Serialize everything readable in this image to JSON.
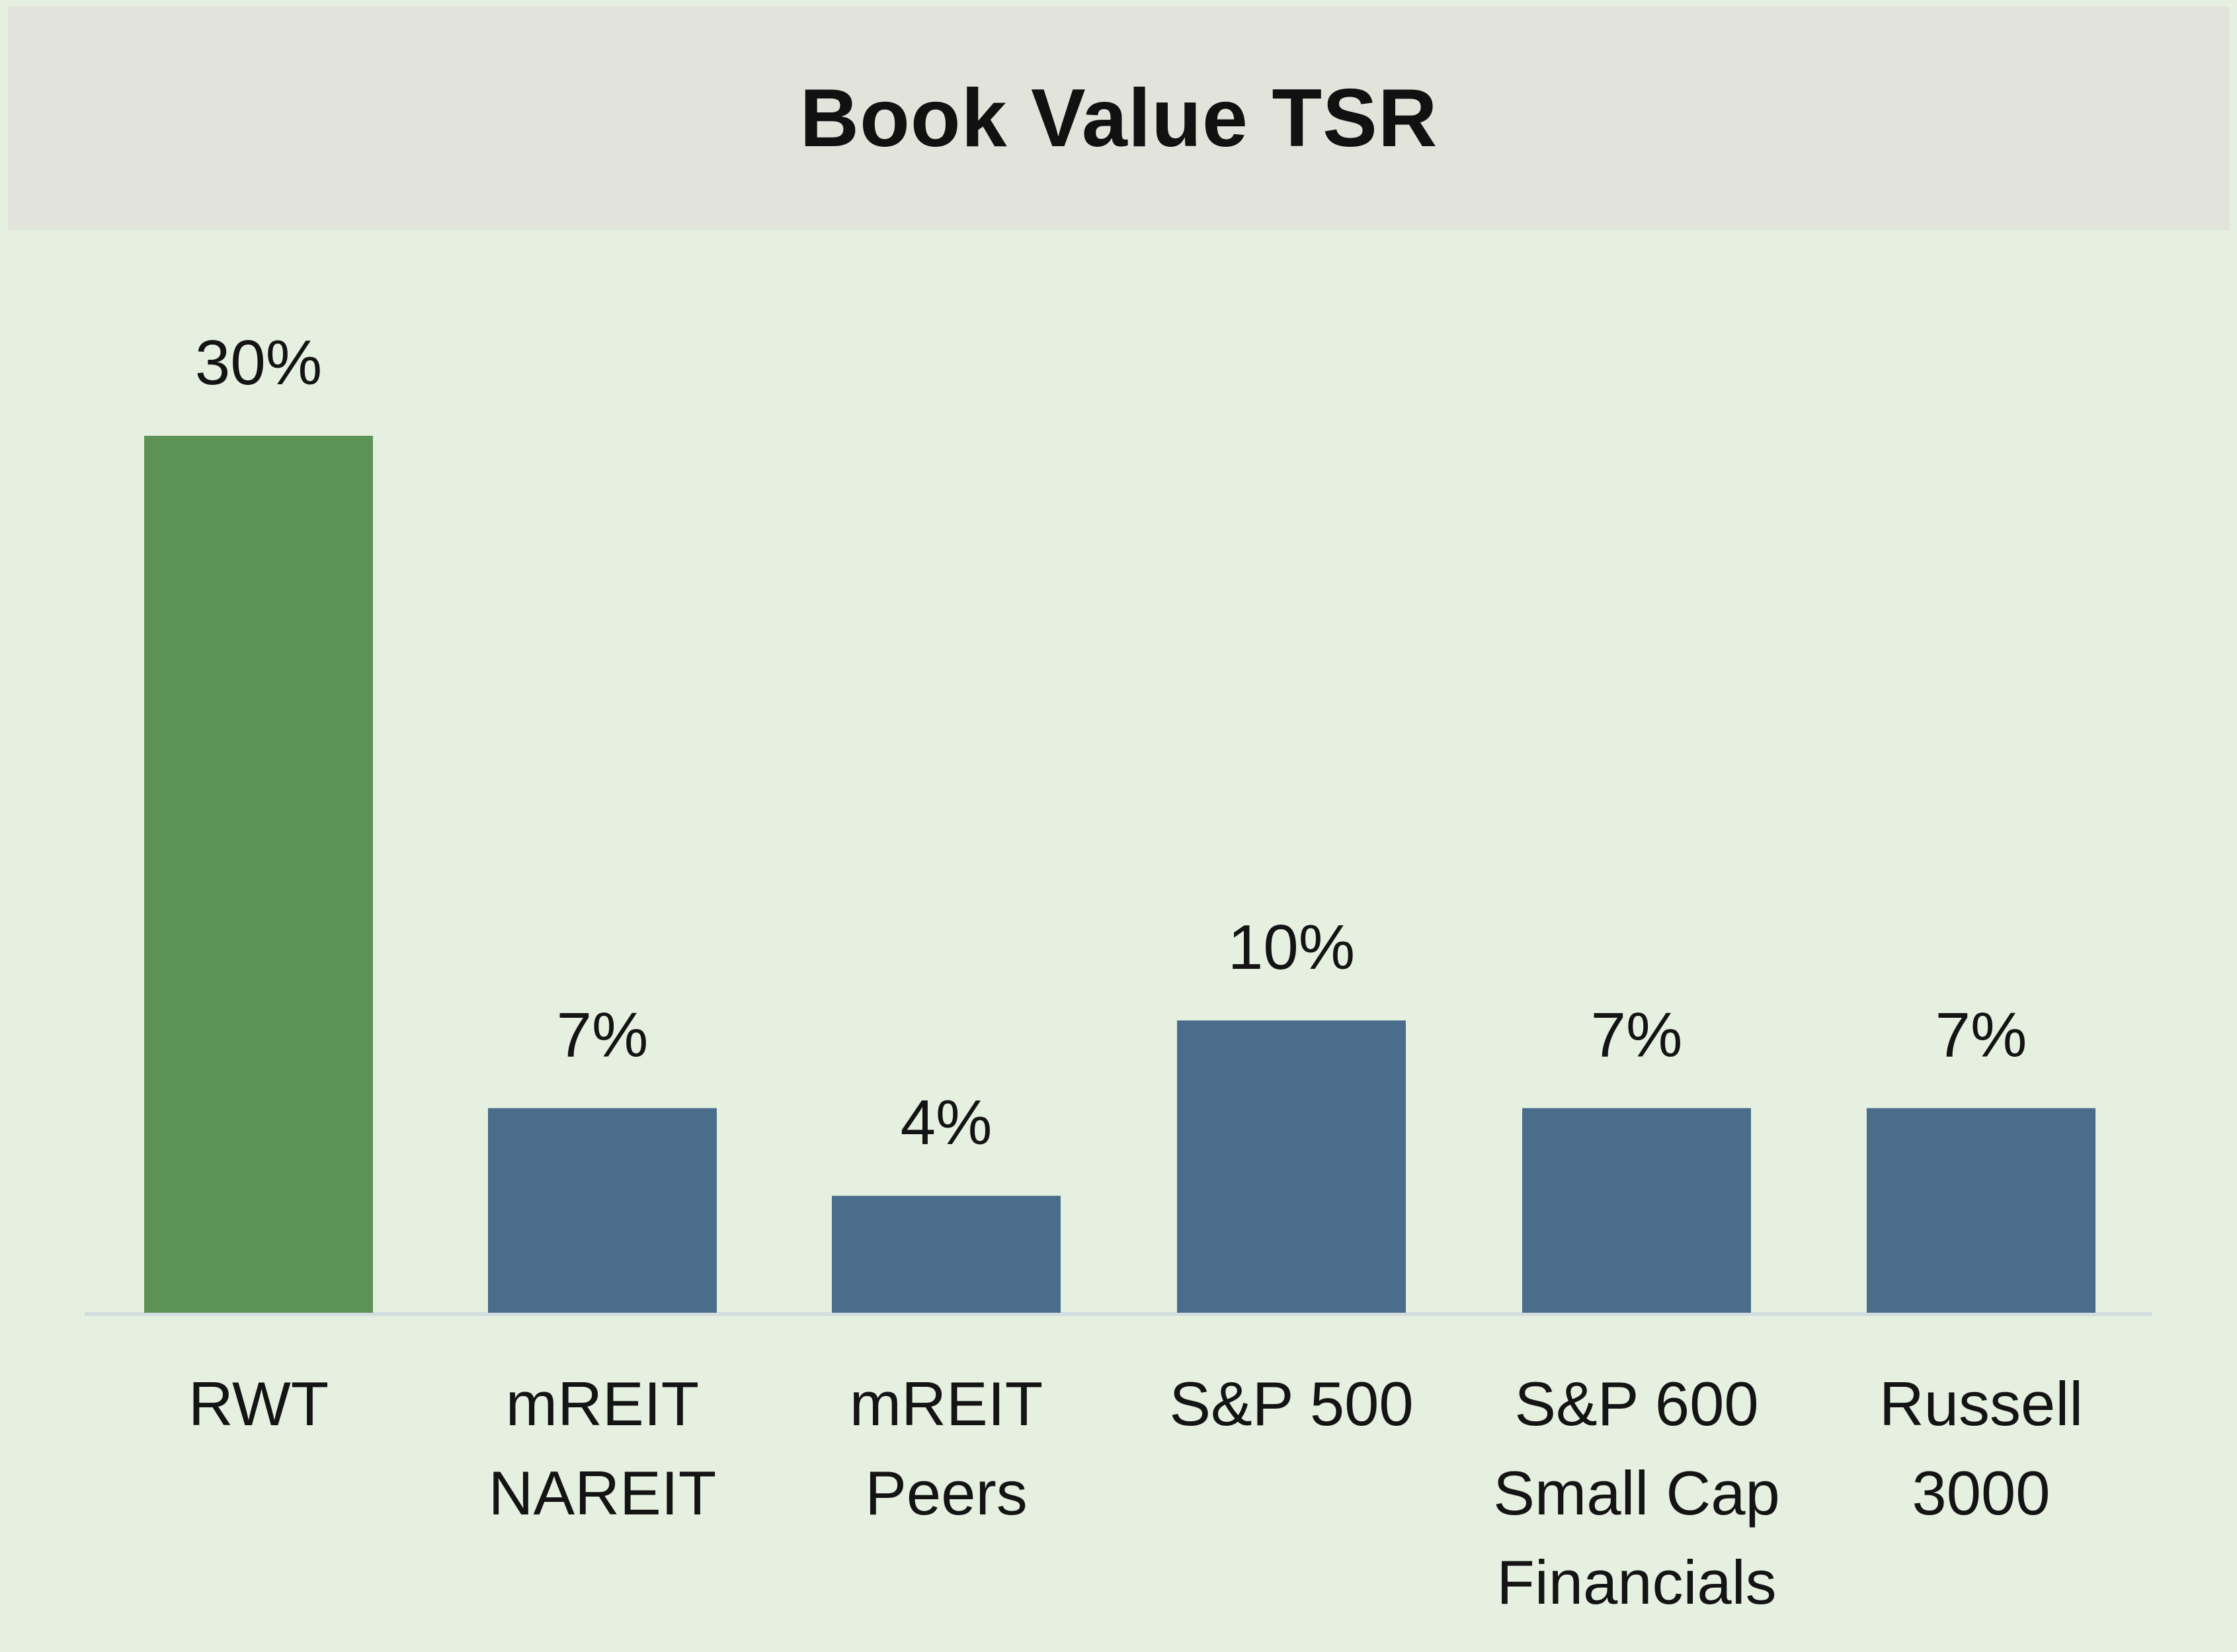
{
  "chart_data": {
    "type": "bar",
    "title": "Book Value TSR",
    "categories": [
      [
        "RWT"
      ],
      [
        "mREIT",
        "NAREIT"
      ],
      [
        "mREIT",
        "Peers"
      ],
      [
        "S&P 500"
      ],
      [
        "S&P 600",
        "Small Cap",
        "Financials"
      ],
      [
        "Russell",
        "3000"
      ]
    ],
    "values": [
      30,
      7,
      4,
      10,
      7,
      7
    ],
    "value_labels": [
      "30%",
      "7%",
      "4%",
      "10%",
      "7%",
      "7%"
    ],
    "bar_colors": [
      "#5c9256",
      "#4a6d8c",
      "#4a6d8c",
      "#4a6d8c",
      "#4a6d8c",
      "#4a6d8c"
    ],
    "xlabel": "",
    "ylabel": "",
    "ylim": [
      0,
      30
    ],
    "grid": false,
    "legend": "none"
  },
  "colors": {
    "background": "#e5f0e0",
    "title_bar": "#e2e4dc",
    "baseline": "#d4dde0"
  }
}
